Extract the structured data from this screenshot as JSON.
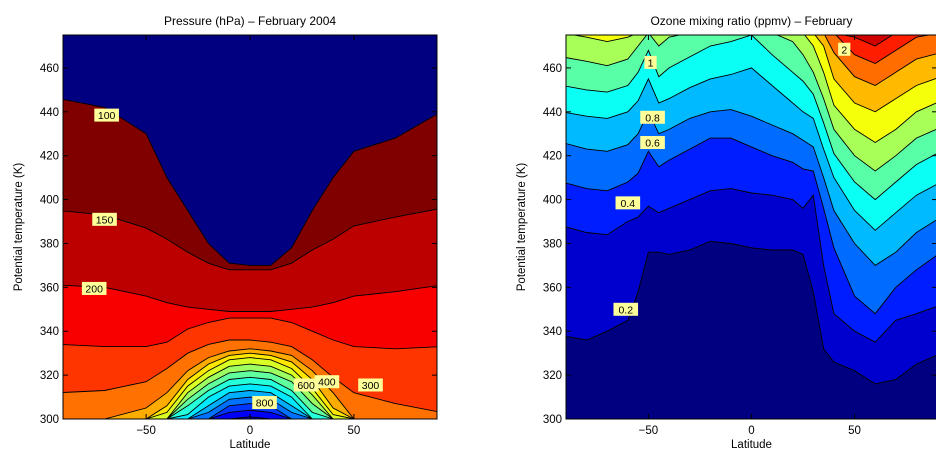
{
  "chart_data": [
    {
      "type": "heatmap",
      "subtype": "filled-contour",
      "title": "Pressure (hPa)   –   February 2004",
      "xlabel": "Latitude",
      "ylabel": "Potential temperature (K)",
      "xlim": [
        -90,
        90
      ],
      "ylim": [
        300,
        475
      ],
      "xticks": [
        -50,
        0,
        50
      ],
      "xtick_labels": [
        "−50",
        "0",
        "50"
      ],
      "yticks": [
        300,
        320,
        340,
        360,
        380,
        400,
        420,
        440,
        460
      ],
      "ytick_labels": [
        "300",
        "320",
        "340",
        "360",
        "380",
        "400",
        "420",
        "440",
        "460"
      ],
      "colormap": "jet",
      "latitudes": [
        -90,
        -70,
        -50,
        -40,
        -30,
        -20,
        -10,
        0,
        10,
        20,
        30,
        40,
        50,
        70,
        90
      ],
      "contour_levels": [
        100,
        150,
        200,
        250,
        300,
        350,
        400,
        450,
        500,
        550,
        600,
        650,
        700,
        750,
        800,
        850,
        900
      ],
      "contour_theta": [
        [
          446,
          442,
          430,
          410,
          395,
          380,
          371,
          370,
          370,
          378,
          395,
          410,
          422,
          428,
          440
        ],
        [
          395,
          393,
          387,
          382,
          376,
          371,
          368,
          368,
          368,
          371,
          377,
          382,
          388,
          392,
          396
        ],
        [
          361,
          360,
          356,
          353,
          351,
          350,
          349,
          349,
          349,
          350,
          351,
          353,
          356,
          358,
          361
        ],
        [
          334,
          333,
          333,
          335,
          341,
          344,
          346,
          346,
          346,
          344,
          340,
          336,
          333,
          332,
          333
        ],
        [
          312,
          313,
          317,
          323,
          330,
          334,
          336,
          336,
          335,
          333,
          327,
          319,
          312,
          307,
          303
        ],
        [
          300,
          300,
          305,
          312,
          322,
          328,
          331,
          332,
          331,
          329,
          322,
          312,
          300,
          300,
          300
        ],
        [
          300,
          300,
          300,
          306,
          318,
          325,
          329,
          330,
          329,
          326,
          318,
          305,
          300,
          300,
          300
        ],
        [
          300,
          300,
          300,
          303,
          315,
          322,
          327,
          328,
          327,
          323,
          314,
          302,
          300,
          300,
          300
        ],
        [
          300,
          300,
          300,
          300,
          312,
          319,
          324,
          325,
          324,
          320,
          311,
          300,
          300,
          300,
          300
        ],
        [
          300,
          300,
          300,
          300,
          309,
          316,
          321,
          322,
          321,
          317,
          307,
          300,
          300,
          300,
          300
        ],
        [
          300,
          300,
          300,
          300,
          306,
          313,
          318,
          319,
          318,
          313,
          303,
          300,
          300,
          300,
          300
        ],
        [
          300,
          300,
          300,
          300,
          302,
          310,
          315,
          316,
          315,
          310,
          300,
          300,
          300,
          300,
          300
        ],
        [
          300,
          300,
          300,
          300,
          300,
          306,
          312,
          313,
          312,
          306,
          300,
          300,
          300,
          300,
          300
        ],
        [
          300,
          300,
          300,
          300,
          300,
          303,
          309,
          310,
          309,
          303,
          300,
          300,
          300,
          300,
          300
        ],
        [
          300,
          300,
          300,
          300,
          300,
          300,
          306,
          307,
          306,
          300,
          300,
          300,
          300,
          300,
          300
        ],
        [
          300,
          300,
          300,
          300,
          300,
          300,
          303,
          304,
          303,
          300,
          300,
          300,
          300,
          300,
          300
        ],
        [
          300,
          300,
          300,
          300,
          300,
          300,
          300,
          301,
          300,
          300,
          300,
          300,
          300,
          300,
          300
        ]
      ],
      "contour_labels": [
        {
          "text": "100",
          "lat": -69,
          "theta": 438.5
        },
        {
          "text": "150",
          "lat": -70,
          "theta": 391
        },
        {
          "text": "200",
          "lat": -75,
          "theta": 359.5
        },
        {
          "text": "800",
          "lat": 7,
          "theta": 307.5
        },
        {
          "text": "600",
          "lat": 27,
          "theta": 315.5
        },
        {
          "text": "400",
          "lat": 37,
          "theta": 317
        },
        {
          "text": "300",
          "lat": 58,
          "theta": 315.5
        }
      ]
    },
    {
      "type": "heatmap",
      "subtype": "filled-contour",
      "title": "Ozone mixing ratio (ppmv)   –   February",
      "xlabel": "Latitude",
      "ylabel": "Potential temperature (K)",
      "xlim": [
        -90,
        90
      ],
      "ylim": [
        300,
        475
      ],
      "xticks": [
        -50,
        0,
        50
      ],
      "xtick_labels": [
        "−50",
        "0",
        "50"
      ],
      "yticks": [
        300,
        320,
        340,
        360,
        380,
        400,
        420,
        440,
        460
      ],
      "ytick_labels": [
        "300",
        "320",
        "340",
        "360",
        "380",
        "400",
        "420",
        "440",
        "460"
      ],
      "colormap": "jet",
      "latitudes": [
        -90,
        -80,
        -70,
        -60,
        -55,
        -50,
        -45,
        -40,
        -30,
        -20,
        -10,
        0,
        10,
        20,
        25,
        30,
        35,
        40,
        50,
        60,
        70,
        80,
        90
      ],
      "contour_levels": [
        0.2,
        0.4,
        0.6,
        0.8,
        1.0,
        1.2,
        1.4,
        1.6,
        1.8,
        2.0,
        2.2,
        2.4,
        2.6
      ],
      "contour_theta": [
        [
          338,
          336,
          340,
          345,
          358,
          376,
          376,
          375,
          377,
          381,
          380,
          378,
          377,
          377,
          375,
          358,
          332,
          326,
          322,
          316,
          318,
          325,
          330
        ],
        [
          388,
          385,
          384,
          390,
          392,
          397,
          394,
          396,
          400,
          404,
          405,
          403,
          402,
          400,
          396,
          402,
          370,
          348,
          340,
          335,
          345,
          348,
          352
        ],
        [
          408,
          405,
          404,
          408,
          412,
          422,
          415,
          418,
          423,
          428,
          428,
          424,
          420,
          417,
          414,
          413,
          396,
          378,
          356,
          348,
          360,
          368,
          376
        ],
        [
          426,
          423,
          422,
          425,
          430,
          440,
          430,
          432,
          437,
          440,
          441,
          438,
          434,
          430,
          427,
          424,
          410,
          395,
          380,
          370,
          376,
          385,
          392
        ],
        [
          440,
          438,
          437,
          440,
          445,
          455,
          444,
          446,
          451,
          455,
          457,
          460,
          452,
          444,
          440,
          437,
          423,
          410,
          395,
          386,
          394,
          402,
          408
        ],
        [
          452,
          450,
          449,
          452,
          458,
          468,
          456,
          460,
          465,
          470,
          472,
          475,
          466,
          458,
          454,
          448,
          435,
          421,
          408,
          400,
          408,
          416,
          422
        ],
        [
          465,
          463,
          461,
          464,
          470,
          476,
          470,
          474,
          476,
          476,
          476,
          476,
          476,
          472,
          466,
          458,
          446,
          432,
          420,
          413,
          420,
          428,
          433
        ],
        [
          476,
          474,
          472,
          474,
          476,
          476,
          476,
          476,
          476,
          476,
          476,
          476,
          476,
          476,
          476,
          470,
          458,
          443,
          432,
          426,
          432,
          440,
          445
        ],
        [
          476,
          476,
          476,
          476,
          476,
          476,
          476,
          476,
          476,
          476,
          476,
          476,
          476,
          476,
          476,
          476,
          470,
          455,
          444,
          440,
          446,
          452,
          456
        ],
        [
          476,
          476,
          476,
          476,
          476,
          476,
          476,
          476,
          476,
          476,
          476,
          476,
          476,
          476,
          476,
          476,
          476,
          467,
          456,
          452,
          458,
          464,
          467
        ],
        [
          476,
          476,
          476,
          476,
          476,
          476,
          476,
          476,
          476,
          476,
          476,
          476,
          476,
          476,
          476,
          476,
          476,
          476,
          466,
          462,
          468,
          474,
          476
        ],
        [
          476,
          476,
          476,
          476,
          476,
          476,
          476,
          476,
          476,
          476,
          476,
          476,
          476,
          476,
          476,
          476,
          476,
          476,
          474,
          470,
          476,
          476,
          476
        ],
        [
          476,
          476,
          476,
          476,
          476,
          476,
          476,
          476,
          476,
          476,
          476,
          476,
          476,
          476,
          476,
          476,
          476,
          476,
          476,
          476,
          476,
          476,
          476
        ]
      ],
      "contour_labels": [
        {
          "text": "1",
          "lat": -49,
          "theta": 462.5
        },
        {
          "text": "0.8",
          "lat": -48,
          "theta": 437.5
        },
        {
          "text": "0.6",
          "lat": -48,
          "theta": 426
        },
        {
          "text": "0.4",
          "lat": -60,
          "theta": 398.5
        },
        {
          "text": "0.2",
          "lat": -61,
          "theta": 350
        },
        {
          "text": "2",
          "lat": 45,
          "theta": 468.5
        }
      ]
    }
  ]
}
